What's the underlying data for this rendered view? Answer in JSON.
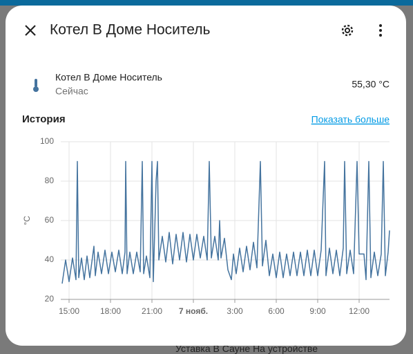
{
  "header": {
    "title": "Котел В Доме Носитель"
  },
  "entity": {
    "name": "Котел В Доме Носитель",
    "time": "Сейчас",
    "state": "55,30 °C"
  },
  "history": {
    "title": "История",
    "link": "Показать больше"
  },
  "background": {
    "text": "Уставка В Сауне На устройстве"
  },
  "chart_data": {
    "type": "line",
    "y_label": "°C",
    "x": [
      14.5,
      14.75,
      15.0,
      15.25,
      15.5,
      15.6,
      15.7,
      15.9,
      16.1,
      16.3,
      16.5,
      16.8,
      16.9,
      17.1,
      17.35,
      17.6,
      17.85,
      18.1,
      18.35,
      18.6,
      18.85,
      19.05,
      19.1,
      19.2,
      19.4,
      19.65,
      19.9,
      20.15,
      20.3,
      20.4,
      20.6,
      20.85,
      21.0,
      21.1,
      21.3,
      21.4,
      21.5,
      21.75,
      22.0,
      22.25,
      22.5,
      22.75,
      23.0,
      23.25,
      23.5,
      23.75,
      24.0,
      24.25,
      24.5,
      24.75,
      25.0,
      25.15,
      25.3,
      25.55,
      25.8,
      25.9,
      26.0,
      26.25,
      26.5,
      26.75,
      26.9,
      27.1,
      27.35,
      27.6,
      27.85,
      28.1,
      28.35,
      28.6,
      28.85,
      29.0,
      29.25,
      29.5,
      29.75,
      30.0,
      30.25,
      30.5,
      30.75,
      31.0,
      31.25,
      31.5,
      31.75,
      32.0,
      32.25,
      32.5,
      32.75,
      33.0,
      33.25,
      33.5,
      33.6,
      33.85,
      34.1,
      34.35,
      34.6,
      34.85,
      34.95,
      35.1,
      35.35,
      35.6,
      35.85,
      36.0,
      36.35,
      36.5,
      36.7,
      36.85,
      37.1,
      37.35,
      37.6,
      37.75,
      37.9,
      38.1,
      38.2
    ],
    "series": [
      {
        "color": "#44739e",
        "values": [
          28,
          40,
          29,
          41,
          30,
          90,
          31,
          41,
          30,
          42,
          31,
          47,
          32,
          44,
          33,
          45,
          33,
          44,
          34,
          45,
          33,
          44,
          90,
          33,
          44,
          33,
          44,
          34,
          90,
          33,
          42,
          31,
          90,
          29,
          80,
          90,
          40,
          52,
          39,
          54,
          38,
          53,
          40,
          54,
          39,
          53,
          40,
          53,
          41,
          52,
          40,
          90,
          41,
          52,
          40,
          60,
          41,
          51,
          35,
          30,
          43,
          33,
          46,
          34,
          47,
          35,
          49,
          36,
          90,
          37,
          50,
          32,
          43,
          31,
          44,
          31,
          43,
          32,
          44,
          32,
          44,
          32,
          45,
          32,
          45,
          32,
          45,
          90,
          32,
          46,
          33,
          45,
          32,
          46,
          90,
          33,
          45,
          33,
          90,
          43,
          43,
          30,
          90,
          31,
          44,
          32,
          43,
          90,
          32,
          44,
          55
        ]
      }
    ],
    "xlim": [
      14.4,
      38.2
    ],
    "ylim": [
      20,
      100
    ],
    "yticks": [
      20,
      40,
      60,
      80,
      100
    ],
    "xticks": [
      {
        "value": 15,
        "label": "15:00"
      },
      {
        "value": 18,
        "label": "18:00"
      },
      {
        "value": 21,
        "label": "21:00"
      },
      {
        "value": 24,
        "label": "7 нояб."
      },
      {
        "value": 27,
        "label": "3:00"
      },
      {
        "value": 30,
        "label": "6:00"
      },
      {
        "value": 33,
        "label": "9:00"
      },
      {
        "value": 36,
        "label": "12:00"
      }
    ],
    "grid": true
  }
}
